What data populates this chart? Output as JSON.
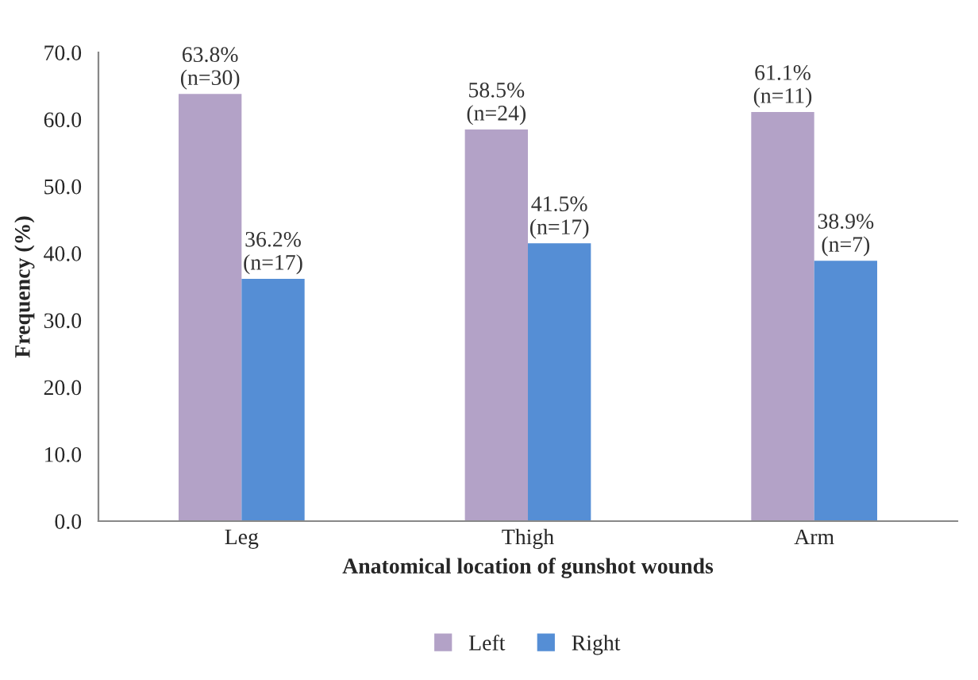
{
  "chart_data": {
    "type": "bar",
    "xlabel": "Anatomical location of gunshot wounds",
    "ylabel": "Frequency (%)",
    "categories": [
      "Leg",
      "Thigh",
      "Arm"
    ],
    "series": [
      {
        "name": "Left",
        "color": "#b3a2c7",
        "values": [
          63.8,
          58.5,
          61.1
        ],
        "value_labels": [
          "63.8%\n(n=30)",
          "58.5%\n(n=24)",
          "61.1%\n(n=11)"
        ]
      },
      {
        "name": "Right",
        "color": "#558ed5",
        "values": [
          36.2,
          41.5,
          38.9
        ],
        "value_labels": [
          "36.2%\n(n=17)",
          "41.5%\n(n=17)",
          "38.9%\n(n=7)"
        ]
      }
    ],
    "ylim": [
      0,
      70
    ],
    "yticks": [
      {
        "value": 0,
        "label": "0.0"
      },
      {
        "value": 10,
        "label": "10.0"
      },
      {
        "value": 20,
        "label": "20.0"
      },
      {
        "value": 30,
        "label": "30.0"
      },
      {
        "value": 40,
        "label": "40.0"
      },
      {
        "value": 50,
        "label": "50.0"
      },
      {
        "value": 60,
        "label": "60.0"
      },
      {
        "value": 70,
        "label": "70.0"
      }
    ],
    "grid": false,
    "legend": "bottom"
  }
}
